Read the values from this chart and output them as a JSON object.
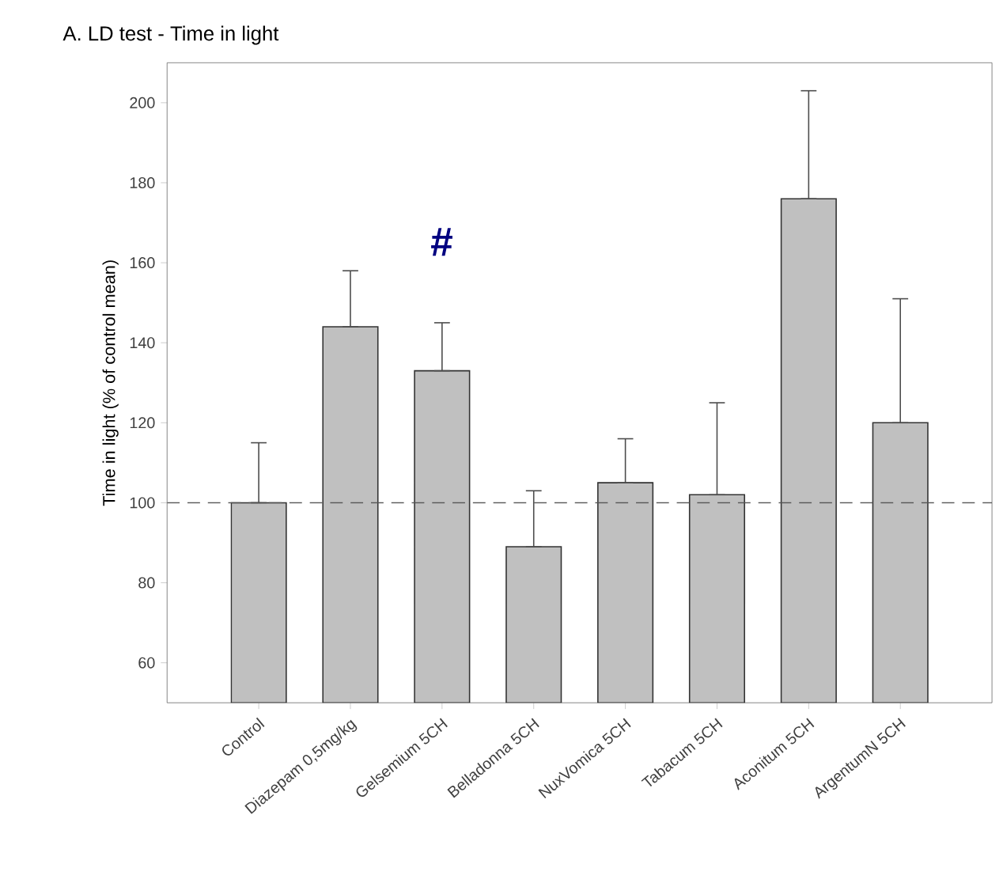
{
  "chart_data": {
    "type": "bar",
    "title": "A. LD test - Time in light",
    "ylabel": "Time in light (% of control mean)",
    "categories": [
      "Control",
      "Diazepam 0,5mg/kg",
      "Gelsemium 5CH",
      "Belladonna 5CH",
      "NuxVomica 5CH",
      "Tabacum 5CH",
      "Aconitum 5CH",
      "ArgentumN 5CH"
    ],
    "values": [
      100,
      144,
      133,
      89,
      105,
      102,
      176,
      120
    ],
    "errors": [
      [
        100,
        115
      ],
      [
        144,
        158
      ],
      [
        133,
        145
      ],
      [
        89,
        103
      ],
      [
        105,
        116
      ],
      [
        102,
        125
      ],
      [
        176,
        203
      ],
      [
        120,
        151
      ]
    ],
    "color": "#c0c0c0",
    "ylim": [
      50,
      210
    ],
    "yticks": [
      60,
      80,
      100,
      120,
      140,
      160,
      180,
      200
    ],
    "ref_lines": [
      {
        "axis": "y",
        "value": 100,
        "line_style": "dashed",
        "color": "#555555"
      }
    ],
    "annotations": [
      "#"
    ]
  }
}
